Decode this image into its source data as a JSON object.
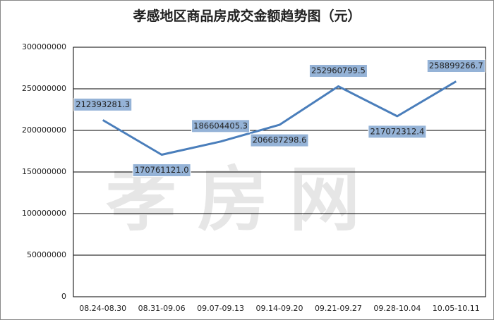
{
  "chart_data": {
    "type": "line",
    "title": "孝感地区商品房成交金额趋势图（元）",
    "watermark": "孝房网",
    "categories": [
      "08.24-08.30",
      "08.31-09.06",
      "09.07-09.13",
      "09.14-09.20",
      "09.21-09.27",
      "09.28-10.04",
      "10.05-10.11"
    ],
    "series": [
      {
        "color": "#4a7ebb",
        "values": [
          212393281.3,
          170761121.0,
          186604405.3,
          206687298.6,
          252960799.5,
          217072312.4,
          258899266.7
        ],
        "value_labels": [
          "212393281.3",
          "170761121.0",
          "186604405.3",
          "206687298.6",
          "252960799.5",
          "217072312.4",
          "258899266.7"
        ]
      }
    ],
    "ylim": [
      0,
      300000000
    ],
    "yticks": [
      0,
      50000000,
      100000000,
      150000000,
      200000000,
      250000000,
      300000000
    ],
    "grid": true
  }
}
